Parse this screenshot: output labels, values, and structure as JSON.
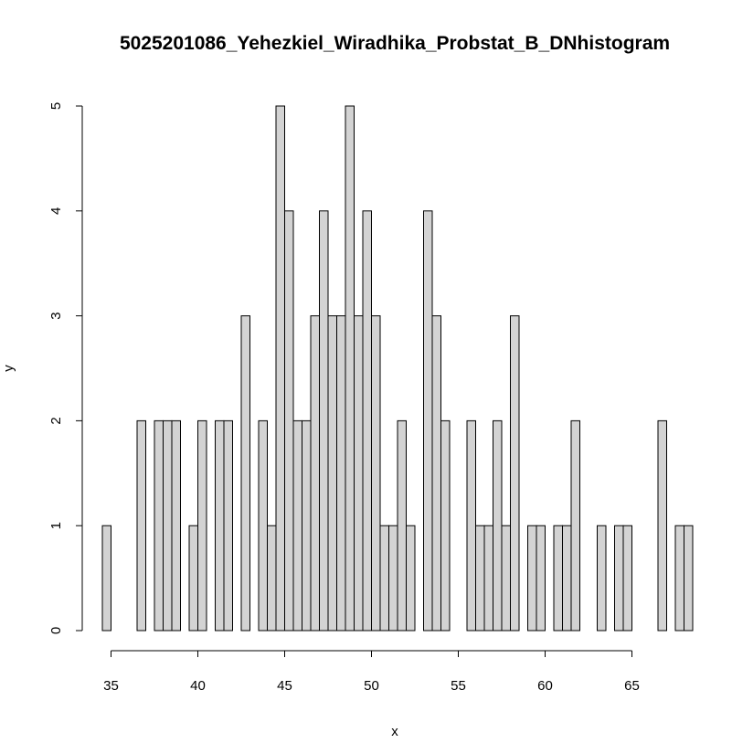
{
  "chart_data": {
    "type": "bar",
    "title": "5025201086_Yehezkiel_Wiradhika_Probstat_B_DNhistogram",
    "xlabel": "x",
    "ylabel": "y",
    "xlim": [
      34.5,
      68.5
    ],
    "ylim": [
      0,
      5
    ],
    "x_ticks": [
      35,
      40,
      45,
      50,
      55,
      60,
      65
    ],
    "y_ticks": [
      0,
      1,
      2,
      3,
      4,
      5
    ],
    "bin_width": 0.5,
    "bin_start": 34.5,
    "values": [
      1,
      0,
      0,
      0,
      2,
      0,
      2,
      2,
      2,
      0,
      1,
      2,
      0,
      2,
      2,
      0,
      3,
      0,
      2,
      1,
      5,
      4,
      2,
      2,
      3,
      4,
      3,
      3,
      5,
      3,
      4,
      3,
      1,
      1,
      2,
      1,
      0,
      4,
      3,
      2,
      0,
      0,
      2,
      1,
      1,
      2,
      1,
      3,
      0,
      1,
      1,
      0,
      1,
      1,
      2,
      0,
      0,
      1,
      0,
      1,
      1,
      0,
      0,
      0,
      2,
      0,
      1,
      1
    ],
    "bar_fill": "#d3d3d3",
    "bar_stroke": "#000000",
    "grid": false,
    "legend": "none"
  }
}
